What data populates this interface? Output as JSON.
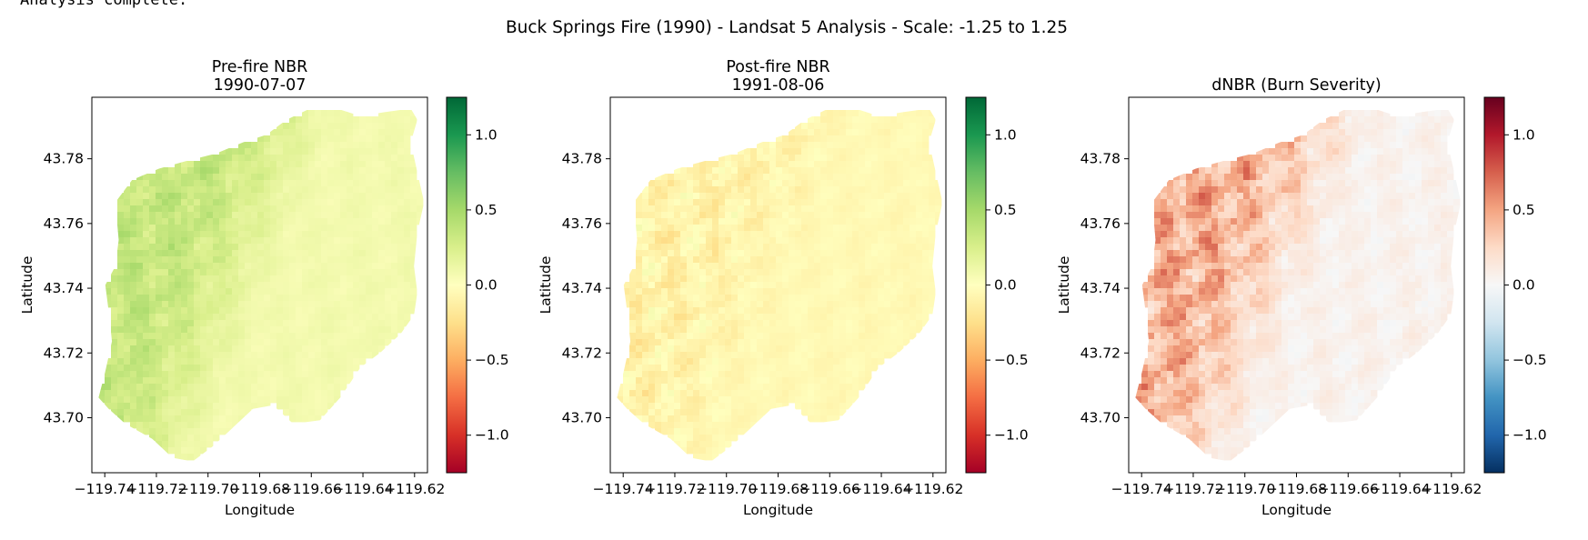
{
  "status_text": "Analysis complete.",
  "suptitle": "Buck Springs Fire (1990) - Landsat 5 Analysis - Scale: -1.25 to 1.25",
  "colors": {
    "rdylgn": [
      "#a50026",
      "#d73027",
      "#f46d43",
      "#fdae61",
      "#fee08b",
      "#ffffbf",
      "#d9ef8b",
      "#a6d96a",
      "#66bd63",
      "#1a9850",
      "#006837"
    ],
    "rdbu_r": [
      "#053061",
      "#2166ac",
      "#4393c3",
      "#92c5de",
      "#d1e5f0",
      "#f7f7f7",
      "#fddbc7",
      "#f4a582",
      "#d6604d",
      "#b2182b",
      "#67001f"
    ]
  },
  "chart_data": [
    {
      "type": "heatmap",
      "title_lines": [
        "Pre-fire NBR",
        "1990-07-07"
      ],
      "xlabel": "Longitude",
      "ylabel": "Latitude",
      "xticks": [
        -119.74,
        -119.72,
        -119.7,
        -119.68,
        -119.66,
        -119.64,
        -119.62
      ],
      "xtick_labels": [
        "−119.74",
        "−119.72",
        "−119.70",
        "−119.68",
        "−119.66",
        "−119.64",
        "−119.62"
      ],
      "yticks": [
        43.7,
        43.72,
        43.74,
        43.76,
        43.78
      ],
      "ytick_labels": [
        "43.70",
        "43.72",
        "43.74",
        "43.76",
        "43.78"
      ],
      "xlim": [
        -119.745,
        -119.615
      ],
      "ylim": [
        43.683,
        43.799
      ],
      "colormap": "RdYlGn",
      "clim": [
        -1.25,
        1.25
      ],
      "colorbar_ticks": [
        1.0,
        0.5,
        0.0,
        -0.5,
        -1.0
      ],
      "colorbar_tick_labels": [
        "1.0",
        "0.5",
        "0.0",
        "−0.5",
        "−1.0"
      ],
      "value_summary": {
        "west_mean": 0.35,
        "east_mean": 0.08,
        "range": [
          0.0,
          0.55
        ]
      }
    },
    {
      "type": "heatmap",
      "title_lines": [
        "Post-fire NBR",
        "1991-08-06"
      ],
      "xlabel": "Longitude",
      "ylabel": "Latitude",
      "xticks": [
        -119.74,
        -119.72,
        -119.7,
        -119.68,
        -119.66,
        -119.64,
        -119.62
      ],
      "xtick_labels": [
        "−119.74",
        "−119.72",
        "−119.70",
        "−119.68",
        "−119.66",
        "−119.64",
        "−119.62"
      ],
      "yticks": [
        43.7,
        43.72,
        43.74,
        43.76,
        43.78
      ],
      "ytick_labels": [
        "43.70",
        "43.72",
        "43.74",
        "43.76",
        "43.78"
      ],
      "xlim": [
        -119.745,
        -119.615
      ],
      "ylim": [
        43.683,
        43.799
      ],
      "colormap": "RdYlGn",
      "clim": [
        -1.25,
        1.25
      ],
      "colorbar_ticks": [
        1.0,
        0.5,
        0.0,
        -0.5,
        -1.0
      ],
      "colorbar_tick_labels": [
        "1.0",
        "0.5",
        "0.0",
        "−0.5",
        "−1.0"
      ],
      "value_summary": {
        "west_mean": -0.1,
        "east_mean": -0.05,
        "range": [
          -0.35,
          0.3
        ]
      }
    },
    {
      "type": "heatmap",
      "title_lines": [
        "dNBR (Burn Severity)"
      ],
      "xlabel": "Longitude",
      "ylabel": "Latitude",
      "xticks": [
        -119.74,
        -119.72,
        -119.7,
        -119.68,
        -119.66,
        -119.64,
        -119.62
      ],
      "xtick_labels": [
        "−119.74",
        "−119.72",
        "−119.70",
        "−119.68",
        "−119.66",
        "−119.64",
        "−119.62"
      ],
      "yticks": [
        43.7,
        43.72,
        43.74,
        43.76,
        43.78
      ],
      "ytick_labels": [
        "43.70",
        "43.72",
        "43.74",
        "43.76",
        "43.78"
      ],
      "xlim": [
        -119.745,
        -119.615
      ],
      "ylim": [
        43.683,
        43.799
      ],
      "colormap": "RdBu_r",
      "clim": [
        -1.25,
        1.25
      ],
      "colorbar_ticks": [
        1.0,
        0.5,
        0.0,
        -0.5,
        -1.0
      ],
      "colorbar_tick_labels": [
        "1.0",
        "0.5",
        "0.0",
        "−0.5",
        "−1.0"
      ],
      "value_summary": {
        "west_mean": 0.45,
        "east_mean": 0.05,
        "range": [
          -0.3,
          0.9
        ]
      }
    }
  ]
}
